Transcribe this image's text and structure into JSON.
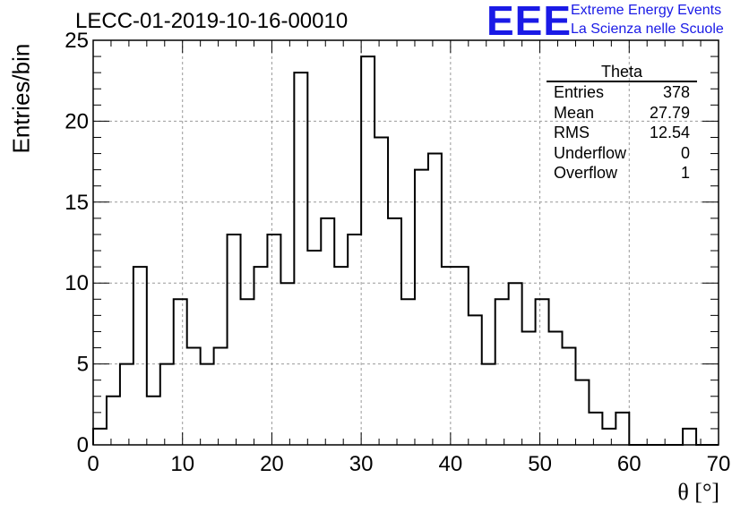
{
  "title": "LECC-01-2019-10-16-00010",
  "logo": {
    "mark": "EEE",
    "line1": "Extreme Energy Events",
    "line2": "La Scienza nelle Scuole",
    "color": "#1a1ae6"
  },
  "stats_box": {
    "header": "Theta",
    "rows": [
      {
        "label": "Entries",
        "value": "378"
      },
      {
        "label": "Mean",
        "value": "27.79"
      },
      {
        "label": "RMS",
        "value": "12.54"
      },
      {
        "label": "Underflow",
        "value": "0"
      },
      {
        "label": "Overflow",
        "value": "1"
      }
    ]
  },
  "chart_data": {
    "type": "bar",
    "title": "LECC-01-2019-10-16-00010",
    "xlabel": "θ [°]",
    "ylabel": "Entries/bin",
    "xlim": [
      0,
      70
    ],
    "ylim": [
      0,
      25
    ],
    "bin_width": 1.5,
    "x_ticks": [
      0,
      10,
      20,
      30,
      40,
      50,
      60,
      70
    ],
    "y_ticks": [
      0,
      5,
      10,
      15,
      20,
      25
    ],
    "grid": true,
    "values": [
      1,
      3,
      5,
      11,
      3,
      5,
      9,
      6,
      5,
      6,
      13,
      9,
      11,
      13,
      10,
      23,
      12,
      14,
      11,
      13,
      24,
      19,
      14,
      9,
      17,
      18,
      11,
      11,
      8,
      5,
      9,
      10,
      7,
      9,
      7,
      6,
      4,
      2,
      1,
      2,
      0,
      0,
      0,
      0,
      1,
      0,
      0
    ],
    "line_color": "#000000"
  }
}
